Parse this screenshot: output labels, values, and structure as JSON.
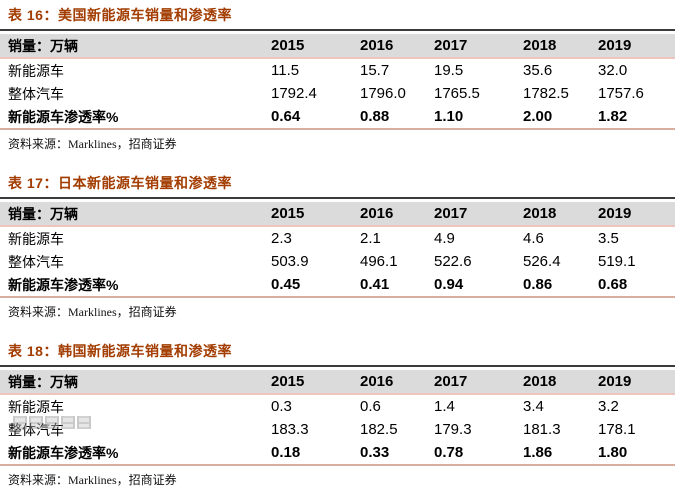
{
  "style": {
    "title_color": "#A23C00",
    "header_bg": "#DBDBDB",
    "title_underline_color": "#3C3C3C",
    "rule_color": "#ECC6BC"
  },
  "tables": [
    {
      "title": "表 16：美国新能源车销量和渗透率",
      "header": {
        "label": "销量：万辆",
        "years": [
          "2015",
          "2016",
          "2017",
          "2018",
          "2019"
        ]
      },
      "rows": [
        {
          "label": "新能源车",
          "values": [
            "11.5",
            "15.7",
            "19.5",
            "35.6",
            "32.0"
          ]
        },
        {
          "label": "整体汽车",
          "values": [
            "1792.4",
            "1796.0",
            "1765.5",
            "1782.5",
            "1757.6"
          ]
        },
        {
          "label": "新能源车渗透率%",
          "values": [
            "0.64",
            "0.88",
            "1.10",
            "2.00",
            "1.82"
          ]
        }
      ],
      "source": "资料来源：Marklines，招商证券"
    },
    {
      "title": "表 17：日本新能源车销量和渗透率",
      "header": {
        "label": "销量：万辆",
        "years": [
          "2015",
          "2016",
          "2017",
          "2018",
          "2019"
        ]
      },
      "rows": [
        {
          "label": "新能源车",
          "values": [
            "2.3",
            "2.1",
            "4.9",
            "4.6",
            "3.5"
          ]
        },
        {
          "label": "整体汽车",
          "values": [
            "503.9",
            "496.1",
            "522.6",
            "526.4",
            "519.1"
          ]
        },
        {
          "label": "新能源车渗透率%",
          "values": [
            "0.45",
            "0.41",
            "0.94",
            "0.86",
            "0.68"
          ]
        }
      ],
      "source": "资料来源：Marklines，招商证券"
    },
    {
      "title": "表 18：韩国新能源车销量和渗透率",
      "header": {
        "label": "销量：万辆",
        "years": [
          "2015",
          "2016",
          "2017",
          "2018",
          "2019"
        ]
      },
      "rows": [
        {
          "label": "新能源车",
          "values": [
            "0.3",
            "0.6",
            "1.4",
            "3.4",
            "3.2"
          ]
        },
        {
          "label": "整体汽车",
          "values": [
            "183.3",
            "182.5",
            "179.3",
            "181.3",
            "178.1"
          ]
        },
        {
          "label": "新能源车渗透率%",
          "values": [
            "0.18",
            "0.33",
            "0.78",
            "1.86",
            "1.80"
          ]
        }
      ],
      "source": "资料来源：Marklines，招商证券"
    }
  ]
}
